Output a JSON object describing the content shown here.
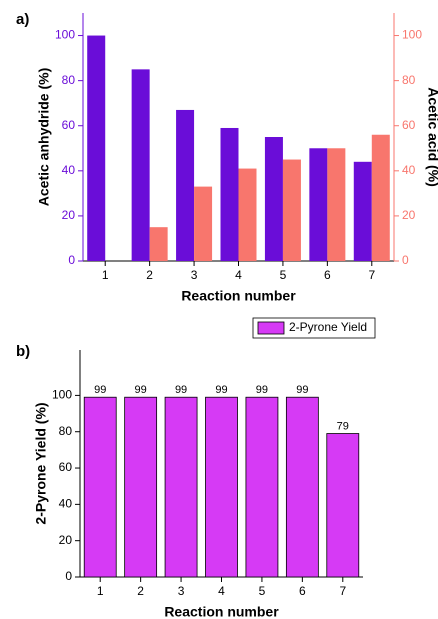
{
  "chart_data": [
    {
      "type": "bar",
      "panel_label": "a)",
      "x_label": "Reaction number",
      "y_label": "Acetic anhydride (%)",
      "y2_label": "Acetic acid (%)",
      "categories": [
        "1",
        "2",
        "3",
        "4",
        "5",
        "6",
        "7"
      ],
      "series": [
        {
          "color": "#6a0dd8",
          "values": [
            100,
            85,
            67,
            59,
            55,
            50,
            44
          ]
        },
        {
          "color": "#f8766d",
          "axis": "y2",
          "values": [
            null,
            15,
            33,
            41,
            45,
            50,
            56
          ]
        }
      ],
      "ylim": [
        0,
        110
      ],
      "yticks": [
        0,
        20,
        40,
        60,
        80,
        100
      ],
      "y2lim": [
        0,
        110
      ],
      "y2ticks": [
        0,
        20,
        40,
        60,
        80,
        100
      ]
    },
    {
      "type": "bar",
      "panel_label": "b)",
      "x_label": "Reaction number",
      "y_label": "2-Pyrone Yield (%)",
      "categories": [
        "1",
        "2",
        "3",
        "4",
        "5",
        "6",
        "7"
      ],
      "series": [
        {
          "name": "2-Pyrone Yield",
          "color": "#d63af5",
          "values": [
            99,
            99,
            99,
            99,
            99,
            99,
            79
          ]
        }
      ],
      "ylim": [
        0,
        125
      ],
      "yticks": [
        0,
        20,
        40,
        60,
        80,
        100
      ],
      "legend": "top-right",
      "data_labels": true
    }
  ]
}
